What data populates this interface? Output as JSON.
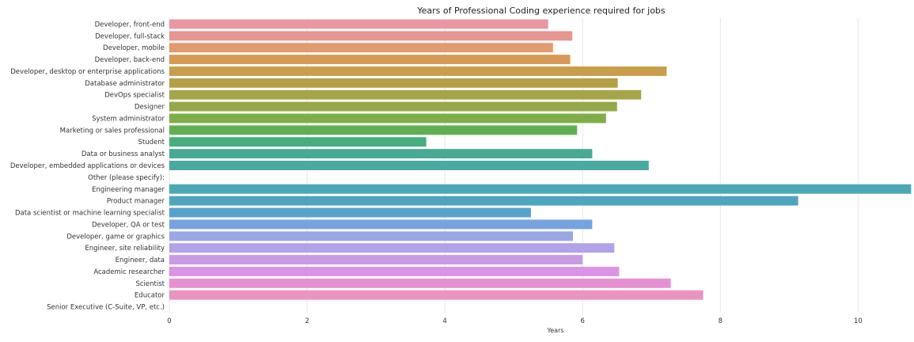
{
  "chart_data": {
    "type": "bar",
    "orientation": "horizontal",
    "title": "Years of Professional Coding experience required for jobs",
    "xlabel": "Years",
    "ylabel": "",
    "xlim": [
      0,
      10.8
    ],
    "xticks": [
      0,
      2,
      4,
      6,
      8,
      10
    ],
    "grid": true,
    "categories": [
      "Developer, front-end",
      "Developer, full-stack",
      "Developer, mobile",
      "Developer, back-end",
      "Developer, desktop or enterprise applications",
      "Database administrator",
      "DevOps specialist",
      "Designer",
      "System administrator",
      "Marketing or sales professional",
      "Student",
      "Data or business analyst",
      "Developer, embedded applications or devices",
      "Other (please specify):",
      "Engineering manager",
      "Product manager",
      "Data scientist or machine learning specialist",
      "Developer, QA or test",
      "Developer, game or graphics",
      "Engineer, site reliability",
      "Engineer, data",
      "Academic researcher",
      "Scientist",
      "Educator",
      "Senior Executive (C-Suite, VP, etc.)"
    ],
    "values": [
      5.5,
      5.85,
      5.57,
      5.82,
      7.22,
      6.51,
      6.85,
      6.5,
      6.34,
      5.92,
      3.73,
      6.14,
      6.96,
      null,
      10.77,
      9.13,
      5.25,
      6.14,
      5.86,
      6.46,
      6.0,
      6.53,
      7.28,
      7.75,
      null
    ],
    "colors": [
      "#ea96a3",
      "#e8948f",
      "#e29a6e",
      "#d79a55",
      "#c99d4c",
      "#b5a048",
      "#a5a448",
      "#94a847",
      "#80ad48",
      "#5faf51",
      "#45ae7c",
      "#48aa93",
      "#4aa9a0",
      "#4aa8aa",
      "#4ca8b4",
      "#4fa5bf",
      "#55a3cd",
      "#76a3e0",
      "#9aa7e6",
      "#b2a2e8",
      "#c89ae6",
      "#dc92e5",
      "#e790d1",
      "#ea94bf",
      "#ea96b0"
    ]
  }
}
